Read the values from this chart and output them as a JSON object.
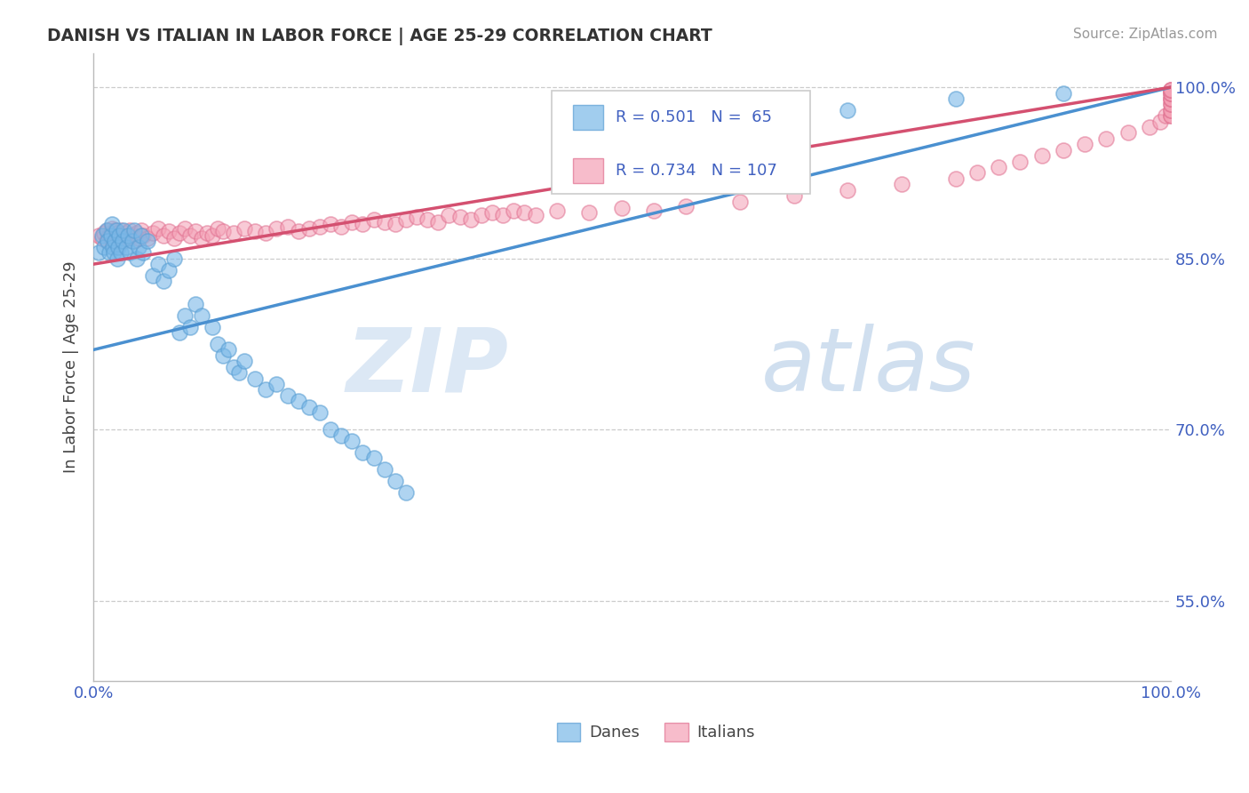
{
  "title": "DANISH VS ITALIAN IN LABOR FORCE | AGE 25-29 CORRELATION CHART",
  "source_text": "Source: ZipAtlas.com",
  "ylabel": "In Labor Force | Age 25-29",
  "xmin": 0.0,
  "xmax": 1.0,
  "ymin": 0.48,
  "ymax": 1.03,
  "yticks": [
    0.55,
    0.7,
    0.85,
    1.0
  ],
  "ytick_labels": [
    "55.0%",
    "70.0%",
    "85.0%",
    "100.0%"
  ],
  "dane_color": "#7ab8e8",
  "dane_edge_color": "#5a9fd4",
  "italian_color": "#f4a0b5",
  "italian_edge_color": "#e07090",
  "dane_trend_color": "#4a90d0",
  "italian_trend_color": "#d45070",
  "legend_text_color": "#4060c0",
  "grid_color": "#cccccc",
  "axis_tick_color": "#4060c0",
  "background_color": "#ffffff",
  "title_color": "#333333",
  "source_color": "#999999",
  "dane_label": "Danes",
  "italian_label": "Italians",
  "danes_x": [
    0.005,
    0.008,
    0.01,
    0.012,
    0.013,
    0.015,
    0.016,
    0.017,
    0.018,
    0.019,
    0.02,
    0.021,
    0.022,
    0.023,
    0.024,
    0.025,
    0.027,
    0.028,
    0.03,
    0.032,
    0.034,
    0.036,
    0.038,
    0.04,
    0.042,
    0.044,
    0.046,
    0.05,
    0.055,
    0.06,
    0.065,
    0.07,
    0.075,
    0.08,
    0.085,
    0.09,
    0.095,
    0.1,
    0.11,
    0.115,
    0.12,
    0.125,
    0.13,
    0.135,
    0.14,
    0.15,
    0.16,
    0.17,
    0.18,
    0.19,
    0.2,
    0.21,
    0.22,
    0.23,
    0.24,
    0.25,
    0.26,
    0.27,
    0.28,
    0.29,
    0.6,
    0.65,
    0.7,
    0.8,
    0.9
  ],
  "danes_y": [
    0.855,
    0.87,
    0.86,
    0.875,
    0.865,
    0.855,
    0.87,
    0.88,
    0.86,
    0.855,
    0.865,
    0.875,
    0.85,
    0.86,
    0.87,
    0.855,
    0.865,
    0.875,
    0.86,
    0.87,
    0.855,
    0.865,
    0.875,
    0.85,
    0.86,
    0.87,
    0.855,
    0.865,
    0.835,
    0.845,
    0.83,
    0.84,
    0.85,
    0.785,
    0.8,
    0.79,
    0.81,
    0.8,
    0.79,
    0.775,
    0.765,
    0.77,
    0.755,
    0.75,
    0.76,
    0.745,
    0.735,
    0.74,
    0.73,
    0.725,
    0.72,
    0.715,
    0.7,
    0.695,
    0.69,
    0.68,
    0.675,
    0.665,
    0.655,
    0.645,
    0.965,
    0.97,
    0.98,
    0.99,
    0.995
  ],
  "italians_x": [
    0.005,
    0.008,
    0.01,
    0.012,
    0.013,
    0.015,
    0.016,
    0.017,
    0.018,
    0.019,
    0.02,
    0.021,
    0.022,
    0.023,
    0.024,
    0.025,
    0.027,
    0.028,
    0.03,
    0.032,
    0.034,
    0.036,
    0.038,
    0.04,
    0.042,
    0.044,
    0.046,
    0.05,
    0.055,
    0.06,
    0.065,
    0.07,
    0.075,
    0.08,
    0.085,
    0.09,
    0.095,
    0.1,
    0.105,
    0.11,
    0.115,
    0.12,
    0.13,
    0.14,
    0.15,
    0.16,
    0.17,
    0.18,
    0.19,
    0.2,
    0.21,
    0.22,
    0.23,
    0.24,
    0.25,
    0.26,
    0.27,
    0.28,
    0.29,
    0.3,
    0.31,
    0.32,
    0.33,
    0.34,
    0.35,
    0.36,
    0.37,
    0.38,
    0.39,
    0.4,
    0.41,
    0.43,
    0.46,
    0.49,
    0.52,
    0.55,
    0.6,
    0.65,
    0.7,
    0.75,
    0.8,
    0.82,
    0.84,
    0.86,
    0.88,
    0.9,
    0.92,
    0.94,
    0.96,
    0.98,
    0.99,
    0.995,
    1.0,
    1.0,
    1.0,
    1.0,
    1.0,
    1.0,
    1.0,
    1.0,
    1.0,
    1.0,
    1.0,
    1.0,
    1.0,
    1.0,
    1.0
  ],
  "italians_y": [
    0.87,
    0.868,
    0.872,
    0.865,
    0.875,
    0.87,
    0.868,
    0.876,
    0.862,
    0.87,
    0.875,
    0.865,
    0.87,
    0.872,
    0.868,
    0.875,
    0.87,
    0.865,
    0.872,
    0.868,
    0.875,
    0.87,
    0.865,
    0.872,
    0.868,
    0.875,
    0.87,
    0.868,
    0.872,
    0.876,
    0.87,
    0.874,
    0.868,
    0.872,
    0.876,
    0.87,
    0.874,
    0.868,
    0.872,
    0.87,
    0.876,
    0.874,
    0.872,
    0.876,
    0.874,
    0.872,
    0.876,
    0.878,
    0.874,
    0.876,
    0.878,
    0.88,
    0.878,
    0.882,
    0.88,
    0.884,
    0.882,
    0.88,
    0.884,
    0.886,
    0.884,
    0.882,
    0.888,
    0.886,
    0.884,
    0.888,
    0.89,
    0.888,
    0.892,
    0.89,
    0.888,
    0.892,
    0.89,
    0.894,
    0.892,
    0.896,
    0.9,
    0.905,
    0.91,
    0.915,
    0.92,
    0.925,
    0.93,
    0.935,
    0.94,
    0.945,
    0.95,
    0.955,
    0.96,
    0.965,
    0.97,
    0.975,
    0.975,
    0.975,
    0.98,
    0.98,
    0.985,
    0.985,
    0.99,
    0.99,
    0.99,
    0.995,
    0.995,
    0.995,
    0.998,
    0.998,
    0.998
  ],
  "dane_trend_x0": 0.0,
  "dane_trend_y0": 0.77,
  "dane_trend_x1": 1.0,
  "dane_trend_y1": 1.0,
  "italian_trend_x0": 0.0,
  "italian_trend_y0": 0.845,
  "italian_trend_x1": 1.0,
  "italian_trend_y1": 1.0
}
